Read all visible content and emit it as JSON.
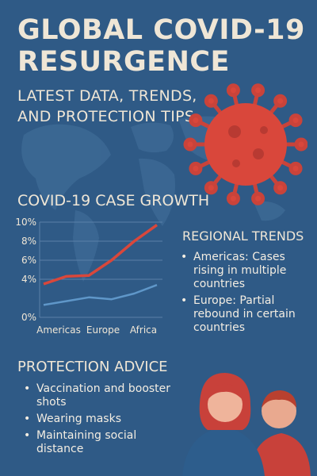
{
  "header": {
    "title_line1": "GLOBAL COVID-19",
    "title_line2": "RESURGENCE",
    "subtitle_line1": "LATEST DATA, TRENDS,",
    "subtitle_line2": "AND PROTECTION TIPS"
  },
  "chart_data": {
    "type": "line",
    "title": "COVID-19 CASE GROWTH",
    "xlabel": "",
    "ylabel": "",
    "x_ticks": [
      "Americas",
      "Europe",
      "Africa"
    ],
    "y_ticks": [
      "10%",
      "8%",
      "6%",
      "4%",
      "0%"
    ],
    "ylim": [
      0,
      10
    ],
    "grid": true,
    "series": [
      {
        "color": "#d9473b",
        "values": [
          3.5,
          4.3,
          4.4,
          6.0,
          8.0,
          9.7
        ]
      },
      {
        "color": "#5f97c9",
        "values": [
          1.3,
          1.7,
          2.1,
          1.9,
          2.5,
          3.4
        ]
      }
    ]
  },
  "regional": {
    "title": "REGIONAL TRENDS",
    "items": [
      "Americas: Cases rising in multiple countries",
      "Europe: Partial rebound in certain countries"
    ]
  },
  "protection": {
    "title": "PROTECTION ADVICE",
    "items": [
      "Vaccination and booster shots",
      "Wearing masks",
      "Maintaining social distance"
    ]
  },
  "colors": {
    "background": "#2f5a86",
    "text": "#efe6d6",
    "accent_red": "#d9473b",
    "accent_blue": "#5f97c9"
  },
  "icons": [
    "world-map-icon",
    "virus-icon",
    "people-icon"
  ]
}
